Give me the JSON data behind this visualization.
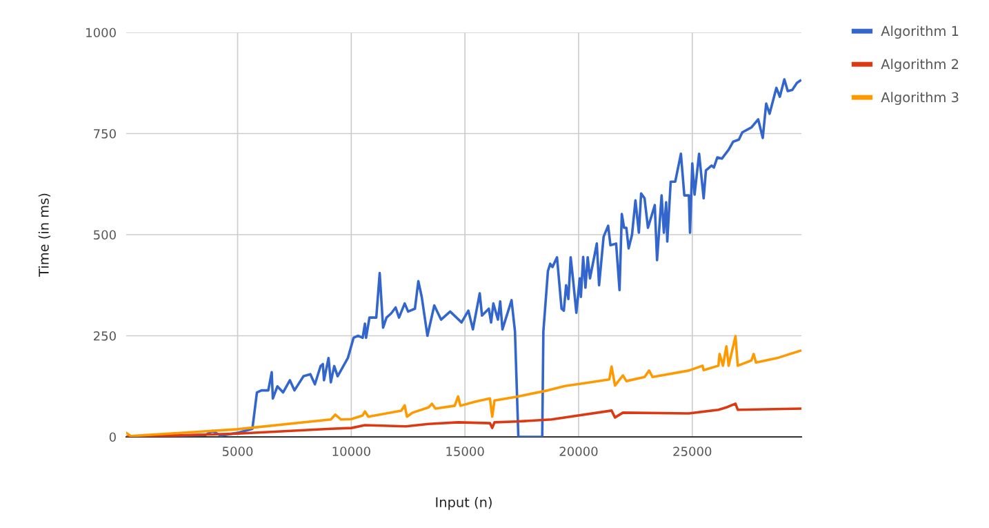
{
  "chart_data": {
    "type": "line",
    "xlabel": "Input (n)",
    "ylabel": "Time (in ms)",
    "xlim": [
      100,
      29800
    ],
    "ylim": [
      0,
      1000
    ],
    "xticks": [
      5000,
      10000,
      15000,
      20000,
      25000
    ],
    "yticks": [
      0,
      250,
      500,
      750,
      1000
    ],
    "grid": true,
    "legend": "top right",
    "marker": "none",
    "line_style": "solid",
    "series": [
      {
        "name": "Algorithm 1",
        "color": "#3366cc",
        "x": [
          100,
          3600,
          3900,
          4250,
          5000,
          5650,
          5850,
          6050,
          6350,
          6500,
          6550,
          6750,
          7000,
          7300,
          7500,
          7900,
          8200,
          8400,
          8650,
          8750,
          8800,
          9000,
          9100,
          9250,
          9400,
          9550,
          9850,
          10000,
          10100,
          10300,
          10500,
          10600,
          10650,
          10800,
          11000,
          11100,
          11250,
          11400,
          11550,
          11750,
          11950,
          12100,
          12350,
          12500,
          12800,
          12950,
          13100,
          13350,
          13650,
          13950,
          14350,
          14850,
          15150,
          15350,
          15650,
          15750,
          16050,
          16150,
          16250,
          16450,
          16550,
          16650,
          17050,
          17200,
          17350,
          18400,
          18450,
          18650,
          18750,
          18850,
          19050,
          19250,
          19350,
          19450,
          19550,
          19650,
          19750,
          19900,
          20050,
          20100,
          20200,
          20300,
          20400,
          20500,
          20800,
          20900,
          21100,
          21300,
          21400,
          21650,
          21800,
          21900,
          22000,
          22100,
          22200,
          22350,
          22500,
          22650,
          22750,
          22900,
          23050,
          23350,
          23450,
          23650,
          23750,
          23850,
          23900,
          24050,
          24250,
          24500,
          24650,
          24850,
          24900,
          25000,
          25100,
          25300,
          25500,
          25600,
          25850,
          25950,
          26100,
          26300,
          26600,
          26800,
          27050,
          27200,
          27600,
          27900,
          28100,
          28250,
          28400,
          28700,
          28850,
          29050,
          29200,
          29400,
          29600,
          29750
        ],
        "values": [
          0,
          5,
          15,
          3,
          10,
          20,
          110,
          115,
          115,
          160,
          95,
          125,
          110,
          140,
          115,
          150,
          155,
          130,
          175,
          180,
          140,
          195,
          135,
          175,
          150,
          165,
          195,
          225,
          245,
          250,
          245,
          280,
          245,
          295,
          295,
          295,
          405,
          270,
          295,
          305,
          320,
          295,
          330,
          310,
          317,
          385,
          346,
          250,
          325,
          290,
          310,
          283,
          312,
          266,
          355,
          300,
          317,
          283,
          330,
          290,
          335,
          266,
          338,
          261,
          0,
          0,
          261,
          410,
          428,
          420,
          444,
          317,
          312,
          375,
          341,
          444,
          392,
          307,
          392,
          346,
          445,
          369,
          444,
          392,
          478,
          375,
          495,
          522,
          474,
          478,
          363,
          551,
          517,
          517,
          466,
          500,
          585,
          505,
          602,
          590,
          517,
          573,
          437,
          597,
          505,
          580,
          483,
          631,
          631,
          700,
          597,
          597,
          505,
          676,
          599,
          700,
          590,
          659,
          671,
          666,
          691,
          688,
          710,
          730,
          735,
          753,
          765,
          785,
          739,
          824,
          799,
          863,
          841,
          884,
          855,
          858,
          875,
          881
        ]
      },
      {
        "name": "Algorithm 2",
        "color": "#dc3912",
        "x": [
          100,
          5000,
          9100,
          10000,
          10600,
          12400,
          13400,
          14700,
          16100,
          16200,
          16300,
          17250,
          18800,
          21450,
          21600,
          21950,
          24850,
          26150,
          26500,
          26900,
          27000,
          29750
        ],
        "values": [
          0,
          8,
          20,
          22,
          29,
          26,
          32,
          36,
          34,
          22,
          36,
          38,
          43,
          65,
          48,
          60,
          58,
          67,
          73,
          82,
          67,
          70
        ]
      },
      {
        "name": "Algorithm 3",
        "color": "#ff9900",
        "x": [
          100,
          300,
          5000,
          9100,
          9300,
          9550,
          10000,
          10500,
          10600,
          10750,
          12200,
          12350,
          12450,
          12700,
          13400,
          13550,
          13700,
          14550,
          14700,
          14800,
          15450,
          16100,
          16200,
          16300,
          17250,
          18650,
          19400,
          20300,
          21350,
          21450,
          21600,
          21950,
          22100,
          22900,
          23100,
          23250,
          24850,
          25450,
          25500,
          26150,
          26200,
          26350,
          26500,
          26600,
          26900,
          27000,
          27600,
          27700,
          27800,
          28800,
          29750
        ],
        "values": [
          10,
          2,
          19,
          43,
          55,
          43,
          44,
          53,
          63,
          50,
          65,
          78,
          50,
          60,
          73,
          82,
          70,
          77,
          100,
          77,
          87,
          95,
          50,
          90,
          99,
          115,
          126,
          133,
          142,
          174,
          127,
          152,
          138,
          148,
          164,
          148,
          164,
          176,
          165,
          176,
          205,
          176,
          224,
          176,
          249,
          176,
          189,
          205,
          184,
          196,
          213
        ]
      }
    ]
  }
}
